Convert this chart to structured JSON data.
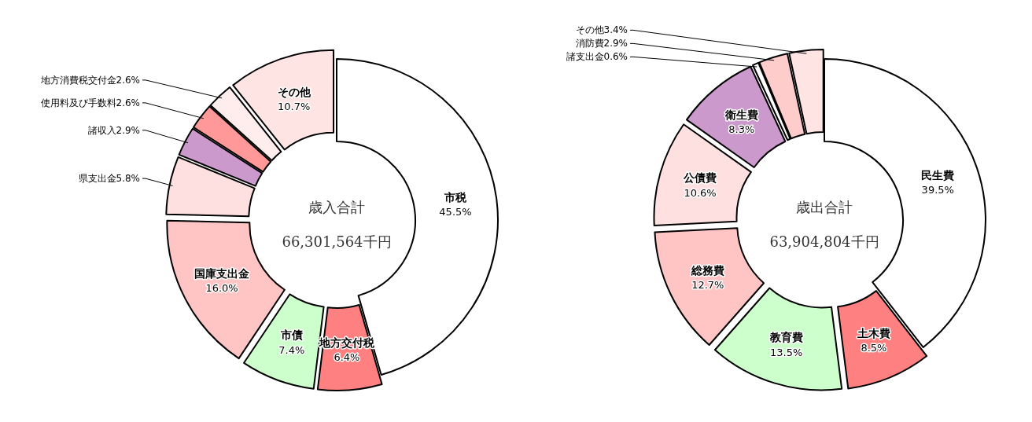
{
  "chart_data": [
    {
      "type": "donut",
      "title": "歳入合計",
      "subtitle": "66,301,564千円",
      "categories": [
        "市税",
        "地方交付税",
        "市債",
        "国庫支出金",
        "県支出金",
        "諸収入",
        "使用料及び手数料",
        "地方消費税交付金",
        "その他"
      ],
      "values": [
        45.5,
        6.4,
        7.4,
        16.0,
        5.8,
        2.9,
        2.6,
        2.6,
        10.7
      ],
      "value_labels": [
        "45.5%",
        "6.4%",
        "7.4%",
        "16.0%",
        "5.8%",
        "2.9%",
        "2.6%",
        "2.6%",
        "10.7%"
      ],
      "colors": [
        "#ffffff",
        "#ff8080",
        "#ccffcc",
        "#ffc4c4",
        "#ffe0e0",
        "#cc99cc",
        "#ff9999",
        "#ffecec",
        "#ffe4e4"
      ]
    },
    {
      "type": "donut",
      "title": "歳出合計",
      "subtitle": "63,904,804千円",
      "categories": [
        "民生費",
        "土木費",
        "教育費",
        "総務費",
        "公債費",
        "衛生費",
        "諸支出金",
        "消防費",
        "その他"
      ],
      "values": [
        39.5,
        8.5,
        13.5,
        12.7,
        10.6,
        8.3,
        0.6,
        2.9,
        3.4
      ],
      "value_labels": [
        "39.5%",
        "8.5%",
        "13.5%",
        "12.7%",
        "10.6%",
        "8.3%",
        "0.6%",
        "2.9%",
        "3.4%"
      ],
      "colors": [
        "#ffffff",
        "#ff8080",
        "#ccffcc",
        "#ffc4c4",
        "#ffe0e0",
        "#cc99cc",
        "#ffffff",
        "#ffcccc",
        "#ffe4e4"
      ]
    }
  ]
}
